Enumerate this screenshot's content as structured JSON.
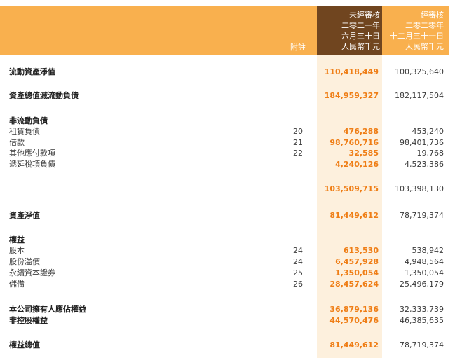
{
  "header": {
    "note_label": "附註",
    "current": [
      "未經審核",
      "二零二一年",
      "六月三十日",
      "人民幣千元"
    ],
    "previous": [
      "經審核",
      "二零二零年",
      "十二月三十一日",
      "人民幣千元"
    ]
  },
  "rows": [
    {
      "label": "流動資產淨值",
      "note": "",
      "current": "110,418,449",
      "previous": "100,325,640"
    },
    {
      "label": "資產總值減流動負債",
      "note": "",
      "current": "184,959,327",
      "previous": "182,117,504"
    },
    {
      "label": "非流動負債",
      "note": "",
      "current": "",
      "previous": ""
    },
    {
      "label": "租賃負債",
      "note": "20",
      "current": "476,288",
      "previous": "453,240"
    },
    {
      "label": "借款",
      "note": "21",
      "current": "98,760,716",
      "previous": "98,401,736"
    },
    {
      "label": "其他應付款項",
      "note": "22",
      "current": "32,585",
      "previous": "19,768"
    },
    {
      "label": "遞延稅項負債",
      "note": "",
      "current": "4,240,126",
      "previous": "4,523,386"
    },
    {
      "label": "",
      "note": "",
      "current": "103,509,715",
      "previous": "103,398,130"
    },
    {
      "label": "資產淨值",
      "note": "",
      "current": "81,449,612",
      "previous": "78,719,374"
    },
    {
      "label": "權益",
      "note": "",
      "current": "",
      "previous": ""
    },
    {
      "label": "股本",
      "note": "24",
      "current": "613,530",
      "previous": "538,942"
    },
    {
      "label": "股份溢價",
      "note": "24",
      "current": "6,457,928",
      "previous": "4,948,564"
    },
    {
      "label": "永續資本證券",
      "note": "25",
      "current": "1,350,054",
      "previous": "1,350,054"
    },
    {
      "label": "儲備",
      "note": "26",
      "current": "28,457,624",
      "previous": "25,496,179"
    },
    {
      "label": "本公司擁有人應佔權益",
      "note": "",
      "current": "36,879,136",
      "previous": "32,333,739"
    },
    {
      "label": "非控股權益",
      "note": "",
      "current": "44,570,476",
      "previous": "46,385,635"
    },
    {
      "label": "權益總值",
      "note": "",
      "current": "81,449,612",
      "previous": "78,719,374"
    }
  ]
}
